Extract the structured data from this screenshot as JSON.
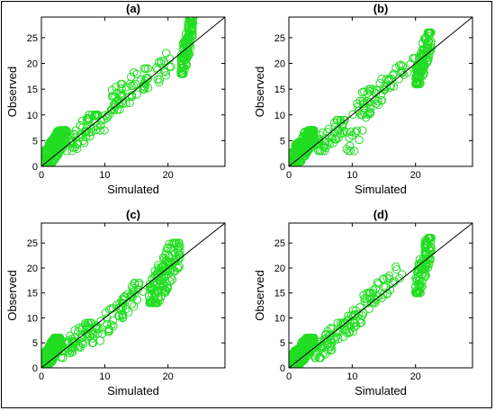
{
  "chart_data": [
    {
      "type": "scatter",
      "title": "(a)",
      "xlabel": "Simulated",
      "ylabel": "Observed",
      "xlim": [
        0,
        29
      ],
      "ylim": [
        0,
        29
      ],
      "xticks": [
        0,
        10,
        20
      ],
      "yticks": [
        0,
        5,
        10,
        15,
        20,
        25
      ],
      "reference_line": "1:1",
      "marker": "open circle",
      "point_color": "#22dd22",
      "clusters": [
        {
          "x": [
            0,
            4
          ],
          "y": [
            0,
            7
          ],
          "n": 260
        },
        {
          "x": [
            4,
            9
          ],
          "y": [
            3,
            10
          ],
          "n": 55
        },
        {
          "x": [
            9,
            13
          ],
          "y": [
            7,
            16
          ],
          "n": 25
        },
        {
          "x": [
            11,
            17
          ],
          "y": [
            11,
            19
          ],
          "n": 35
        },
        {
          "x": [
            16,
            21
          ],
          "y": [
            15,
            22
          ],
          "n": 25
        },
        {
          "x": [
            22,
            24
          ],
          "y": [
            18,
            29
          ],
          "n": 120
        }
      ]
    },
    {
      "type": "scatter",
      "title": "(b)",
      "xlabel": "Simulated",
      "ylabel": "Observed",
      "xlim": [
        0,
        29
      ],
      "ylim": [
        0,
        29
      ],
      "xticks": [
        0,
        10,
        20
      ],
      "yticks": [
        0,
        5,
        10,
        15,
        20,
        25
      ],
      "reference_line": "1:1",
      "marker": "open circle",
      "point_color": "#22dd22",
      "clusters": [
        {
          "x": [
            0,
            4
          ],
          "y": [
            0,
            7
          ],
          "n": 250
        },
        {
          "x": [
            4,
            9
          ],
          "y": [
            3,
            9
          ],
          "n": 50
        },
        {
          "x": [
            9,
            13
          ],
          "y": [
            3,
            15
          ],
          "n": 30
        },
        {
          "x": [
            11,
            16
          ],
          "y": [
            10,
            17
          ],
          "n": 30
        },
        {
          "x": [
            15,
            20
          ],
          "y": [
            15,
            21
          ],
          "n": 25
        },
        {
          "x": [
            20,
            22.5
          ],
          "y": [
            16,
            26
          ],
          "n": 120
        }
      ]
    },
    {
      "type": "scatter",
      "title": "(c)",
      "xlabel": "Simulated",
      "ylabel": "Observed",
      "xlim": [
        0,
        29
      ],
      "ylim": [
        0,
        29
      ],
      "xticks": [
        0,
        10,
        20
      ],
      "yticks": [
        0,
        5,
        10,
        15,
        20,
        25
      ],
      "reference_line": "1:1",
      "marker": "open circle",
      "point_color": "#22dd22",
      "clusters": [
        {
          "x": [
            0,
            3
          ],
          "y": [
            0,
            6
          ],
          "n": 250
        },
        {
          "x": [
            3,
            8
          ],
          "y": [
            2,
            9
          ],
          "n": 60
        },
        {
          "x": [
            8,
            13
          ],
          "y": [
            5,
            13
          ],
          "n": 40
        },
        {
          "x": [
            12,
            16
          ],
          "y": [
            10,
            17
          ],
          "n": 30
        },
        {
          "x": [
            17,
            22
          ],
          "y": [
            13,
            25
          ],
          "n": 140
        }
      ]
    },
    {
      "type": "scatter",
      "title": "(d)",
      "xlabel": "Simulated",
      "ylabel": "Observed",
      "xlim": [
        0,
        29
      ],
      "ylim": [
        0,
        29
      ],
      "xticks": [
        0,
        10,
        20
      ],
      "yticks": [
        0,
        5,
        10,
        15,
        20,
        25
      ],
      "reference_line": "1:1",
      "marker": "open circle",
      "point_color": "#22dd22",
      "clusters": [
        {
          "x": [
            0,
            4
          ],
          "y": [
            0,
            6
          ],
          "n": 250
        },
        {
          "x": [
            4,
            9
          ],
          "y": [
            2,
            9
          ],
          "n": 60
        },
        {
          "x": [
            9,
            13
          ],
          "y": [
            7,
            15
          ],
          "n": 40
        },
        {
          "x": [
            13,
            18
          ],
          "y": [
            13,
            21
          ],
          "n": 30
        },
        {
          "x": [
            20,
            22.5
          ],
          "y": [
            15,
            26
          ],
          "n": 120
        }
      ]
    }
  ]
}
